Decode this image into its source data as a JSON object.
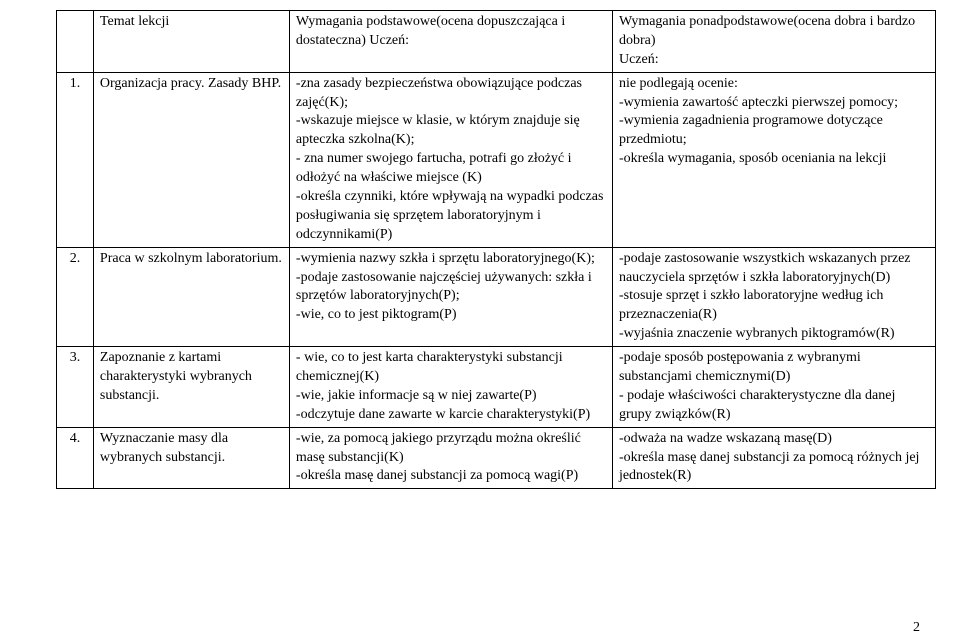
{
  "header": {
    "topic_label": "Temat lekcji",
    "basic_label": "Wymagania podstawowe(ocena dopuszczająca i dostateczna) Uczeń:",
    "adv_label": "Wymagania ponadpodstawowe(ocena dobra i bardzo dobra)\nUczeń:"
  },
  "rows": [
    {
      "num": "1.",
      "topic": "Organizacja pracy. Zasady BHP.",
      "basic": "-zna zasady bezpieczeństwa obowiązujące podczas zajęć(K);\n-wskazuje miejsce w klasie, w którym znajduje się apteczka szkolna(K);\n- zna numer swojego fartucha, potrafi go złożyć i odłożyć na właściwe miejsce (K)\n-określa czynniki, które wpływają na wypadki podczas posługiwania się sprzętem laboratoryjnym i odczynnikami(P)",
      "adv": "nie podlegają ocenie:\n-wymienia zawartość apteczki pierwszej pomocy;\n-wymienia zagadnienia programowe dotyczące przedmiotu;\n-określa wymagania, sposób oceniania na lekcji"
    },
    {
      "num": "2.",
      "topic": "Praca w szkolnym laboratorium.",
      "basic": "-wymienia nazwy szkła i sprzętu laboratoryjnego(K);\n-podaje zastosowanie najczęściej używanych: szkła i sprzętów laboratoryjnych(P);\n-wie, co to jest piktogram(P)",
      "adv": "-podaje zastosowanie wszystkich wskazanych przez nauczyciela sprzętów i szkła laboratoryjnych(D)\n-stosuje sprzęt i szkło laboratoryjne według ich przeznaczenia(R)\n-wyjaśnia znaczenie wybranych piktogramów(R)"
    },
    {
      "num": "3.",
      "topic": "Zapoznanie z kartami charakterystyki wybranych substancji.",
      "basic": "- wie, co to jest karta charakterystyki substancji chemicznej(K)\n-wie, jakie informacje są w niej zawarte(P)\n-odczytuje dane zawarte w karcie charakterystyki(P)",
      "adv": "-podaje sposób postępowania z wybranymi substancjami chemicznymi(D)\n- podaje właściwości charakterystyczne dla danej grupy związków(R)"
    },
    {
      "num": "4.",
      "topic": "Wyznaczanie masy dla wybranych substancji.",
      "basic": "-wie, za pomocą jakiego przyrządu można określić masę substancji(K)\n-określa masę danej substancji za pomocą wagi(P)",
      "adv": "-odważa na wadze wskazaną masę(D)\n-określa masę danej substancji za pomocą różnych jej jednostek(R)"
    }
  ],
  "page_number": "2"
}
